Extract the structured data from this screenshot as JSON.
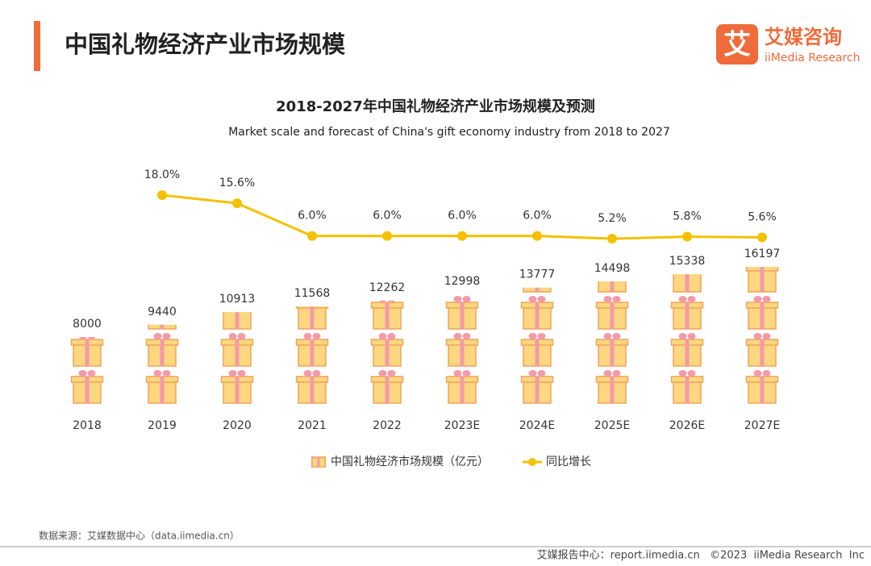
{
  "header": {
    "title": "中国礼物经济产业市场规模",
    "logo_icon": "艾",
    "logo_text": "艾媒咨询",
    "logo_subtext": "iiMedia Research"
  },
  "chart_data": {
    "type": "bar-line",
    "title": "2018-2027年中国礼物经济产业市场规模及预测",
    "subtitle": "Market scale and forecast of China's gift economy industry from 2018 to 2027",
    "categories": [
      "2018",
      "2019",
      "2020",
      "2021",
      "2022",
      "2023E",
      "2024E",
      "2025E",
      "2026E",
      "2027E"
    ],
    "series": [
      {
        "name": "中国礼物经济市场规模（亿元）",
        "type": "bar",
        "color": "#fcd77f",
        "values": [
          8000,
          9440,
          10913,
          11568,
          12262,
          12998,
          13777,
          14498,
          15338,
          16197
        ]
      },
      {
        "name": "同比增长",
        "type": "line",
        "color": "#f5c000",
        "values": [
          null,
          18.0,
          15.6,
          6.0,
          6.0,
          6.0,
          6.0,
          5.2,
          5.8,
          5.6
        ],
        "value_labels": [
          null,
          "18.0%",
          "15.6%",
          "6.0%",
          "6.0%",
          "6.0%",
          "6.0%",
          "5.2%",
          "5.8%",
          "5.6%"
        ]
      }
    ],
    "legend": "bottom"
  },
  "footer": {
    "source": "数据来源：艾媒数据中心（data.iimedia.cn）",
    "right": "艾媒报告中心：report.iimedia.cn   ©2023  iiMedia Research  Inc"
  }
}
